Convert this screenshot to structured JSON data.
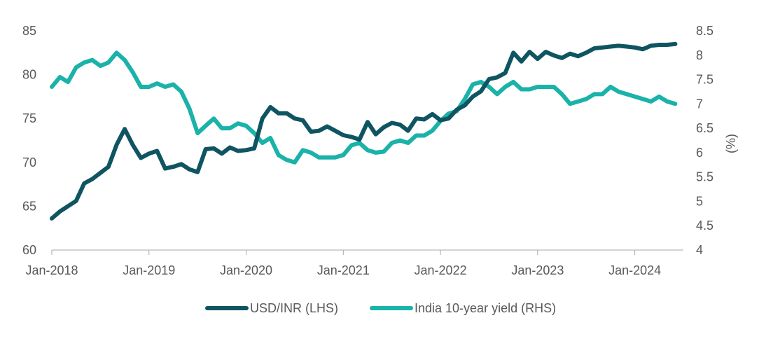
{
  "chart_data": {
    "type": "line",
    "title": "",
    "xlabel": "",
    "ylabel_left": "",
    "ylabel_right": "(%)",
    "x_ticks": [
      "Jan-2018",
      "Jan-2019",
      "Jan-2020",
      "Jan-2021",
      "Jan-2022",
      "Jan-2023",
      "Jan-2024"
    ],
    "xlim": [
      "2018-01",
      "2024-07"
    ],
    "y_left": {
      "ylim": [
        60,
        85
      ],
      "ticks": [
        "60",
        "65",
        "70",
        "75",
        "80",
        "85"
      ]
    },
    "y_right": {
      "ylim": [
        4,
        8.5
      ],
      "ticks": [
        "4",
        "4.5",
        "5",
        "5.5",
        "6",
        "6.5",
        "7",
        "7.5",
        "8",
        "8.5"
      ]
    },
    "grid": false,
    "legend_position": "bottom-center",
    "series": [
      {
        "name": "USD/INR (LHS)",
        "axis": "left",
        "color": "#0f5561",
        "points": [
          [
            "2018-01",
            63.6
          ],
          [
            "2018-02",
            64.4
          ],
          [
            "2018-03",
            65.0
          ],
          [
            "2018-04",
            65.6
          ],
          [
            "2018-05",
            67.6
          ],
          [
            "2018-06",
            68.1
          ],
          [
            "2018-07",
            68.8
          ],
          [
            "2018-08",
            69.5
          ],
          [
            "2018-09",
            72.0
          ],
          [
            "2018-10",
            73.8
          ],
          [
            "2018-11",
            72.0
          ],
          [
            "2018-12",
            70.5
          ],
          [
            "2019-01",
            71.0
          ],
          [
            "2019-02",
            71.3
          ],
          [
            "2019-03",
            69.3
          ],
          [
            "2019-04",
            69.5
          ],
          [
            "2019-05",
            69.8
          ],
          [
            "2019-06",
            69.2
          ],
          [
            "2019-07",
            68.9
          ],
          [
            "2019-08",
            71.5
          ],
          [
            "2019-09",
            71.6
          ],
          [
            "2019-10",
            71.0
          ],
          [
            "2019-11",
            71.7
          ],
          [
            "2019-12",
            71.3
          ],
          [
            "2020-01",
            71.4
          ],
          [
            "2020-02",
            71.6
          ],
          [
            "2020-03",
            75.0
          ],
          [
            "2020-04",
            76.3
          ],
          [
            "2020-05",
            75.6
          ],
          [
            "2020-06",
            75.6
          ],
          [
            "2020-07",
            75.0
          ],
          [
            "2020-08",
            74.8
          ],
          [
            "2020-09",
            73.5
          ],
          [
            "2020-10",
            73.6
          ],
          [
            "2020-11",
            74.1
          ],
          [
            "2020-12",
            73.6
          ],
          [
            "2021-01",
            73.1
          ],
          [
            "2021-02",
            72.9
          ],
          [
            "2021-03",
            72.6
          ],
          [
            "2021-04",
            74.6
          ],
          [
            "2021-05",
            73.2
          ],
          [
            "2021-06",
            74.0
          ],
          [
            "2021-07",
            74.5
          ],
          [
            "2021-08",
            74.3
          ],
          [
            "2021-09",
            73.6
          ],
          [
            "2021-10",
            75.0
          ],
          [
            "2021-11",
            74.9
          ],
          [
            "2021-12",
            75.5
          ],
          [
            "2022-01",
            74.8
          ],
          [
            "2022-02",
            75.0
          ],
          [
            "2022-03",
            76.0
          ],
          [
            "2022-04",
            76.5
          ],
          [
            "2022-05",
            77.5
          ],
          [
            "2022-06",
            78.1
          ],
          [
            "2022-07",
            79.5
          ],
          [
            "2022-08",
            79.7
          ],
          [
            "2022-09",
            80.2
          ],
          [
            "2022-10",
            82.5
          ],
          [
            "2022-11",
            81.5
          ],
          [
            "2022-12",
            82.6
          ],
          [
            "2023-01",
            81.8
          ],
          [
            "2023-02",
            82.6
          ],
          [
            "2023-03",
            82.2
          ],
          [
            "2023-04",
            81.9
          ],
          [
            "2023-05",
            82.4
          ],
          [
            "2023-06",
            82.1
          ],
          [
            "2023-07",
            82.5
          ],
          [
            "2023-08",
            83.0
          ],
          [
            "2023-09",
            83.1
          ],
          [
            "2023-10",
            83.2
          ],
          [
            "2023-11",
            83.3
          ],
          [
            "2023-12",
            83.2
          ],
          [
            "2024-01",
            83.1
          ],
          [
            "2024-02",
            82.9
          ],
          [
            "2024-03",
            83.3
          ],
          [
            "2024-04",
            83.4
          ],
          [
            "2024-05",
            83.4
          ],
          [
            "2024-06",
            83.5
          ]
        ]
      },
      {
        "name": "India 10-year yield (RHS)",
        "axis": "right",
        "color": "#1ab2a9",
        "points": [
          [
            "2018-01",
            7.35
          ],
          [
            "2018-02",
            7.55
          ],
          [
            "2018-03",
            7.45
          ],
          [
            "2018-04",
            7.75
          ],
          [
            "2018-05",
            7.85
          ],
          [
            "2018-06",
            7.9
          ],
          [
            "2018-07",
            7.78
          ],
          [
            "2018-08",
            7.85
          ],
          [
            "2018-09",
            8.05
          ],
          [
            "2018-10",
            7.9
          ],
          [
            "2018-11",
            7.65
          ],
          [
            "2018-12",
            7.35
          ],
          [
            "2019-01",
            7.35
          ],
          [
            "2019-02",
            7.42
          ],
          [
            "2019-03",
            7.35
          ],
          [
            "2019-04",
            7.4
          ],
          [
            "2019-05",
            7.25
          ],
          [
            "2019-06",
            6.9
          ],
          [
            "2019-07",
            6.4
          ],
          [
            "2019-08",
            6.55
          ],
          [
            "2019-09",
            6.7
          ],
          [
            "2019-10",
            6.5
          ],
          [
            "2019-11",
            6.5
          ],
          [
            "2019-12",
            6.6
          ],
          [
            "2020-01",
            6.55
          ],
          [
            "2020-02",
            6.4
          ],
          [
            "2020-03",
            6.2
          ],
          [
            "2020-04",
            6.3
          ],
          [
            "2020-05",
            5.95
          ],
          [
            "2020-06",
            5.85
          ],
          [
            "2020-07",
            5.8
          ],
          [
            "2020-08",
            6.05
          ],
          [
            "2020-09",
            6.0
          ],
          [
            "2020-10",
            5.9
          ],
          [
            "2020-11",
            5.9
          ],
          [
            "2020-12",
            5.9
          ],
          [
            "2021-01",
            5.95
          ],
          [
            "2021-02",
            6.15
          ],
          [
            "2021-03",
            6.2
          ],
          [
            "2021-04",
            6.05
          ],
          [
            "2021-05",
            6.0
          ],
          [
            "2021-06",
            6.02
          ],
          [
            "2021-07",
            6.2
          ],
          [
            "2021-08",
            6.25
          ],
          [
            "2021-09",
            6.2
          ],
          [
            "2021-10",
            6.35
          ],
          [
            "2021-11",
            6.35
          ],
          [
            "2021-12",
            6.45
          ],
          [
            "2022-01",
            6.65
          ],
          [
            "2022-02",
            6.8
          ],
          [
            "2022-03",
            6.85
          ],
          [
            "2022-04",
            7.1
          ],
          [
            "2022-05",
            7.4
          ],
          [
            "2022-06",
            7.45
          ],
          [
            "2022-07",
            7.35
          ],
          [
            "2022-08",
            7.2
          ],
          [
            "2022-09",
            7.35
          ],
          [
            "2022-10",
            7.45
          ],
          [
            "2022-11",
            7.3
          ],
          [
            "2022-12",
            7.3
          ],
          [
            "2023-01",
            7.35
          ],
          [
            "2023-02",
            7.35
          ],
          [
            "2023-03",
            7.35
          ],
          [
            "2023-04",
            7.2
          ],
          [
            "2023-05",
            7.0
          ],
          [
            "2023-06",
            7.05
          ],
          [
            "2023-07",
            7.1
          ],
          [
            "2023-08",
            7.2
          ],
          [
            "2023-09",
            7.2
          ],
          [
            "2023-10",
            7.35
          ],
          [
            "2023-11",
            7.25
          ],
          [
            "2023-12",
            7.2
          ],
          [
            "2024-01",
            7.15
          ],
          [
            "2024-02",
            7.1
          ],
          [
            "2024-03",
            7.05
          ],
          [
            "2024-04",
            7.15
          ],
          [
            "2024-05",
            7.05
          ],
          [
            "2024-06",
            7.0
          ]
        ]
      }
    ]
  }
}
